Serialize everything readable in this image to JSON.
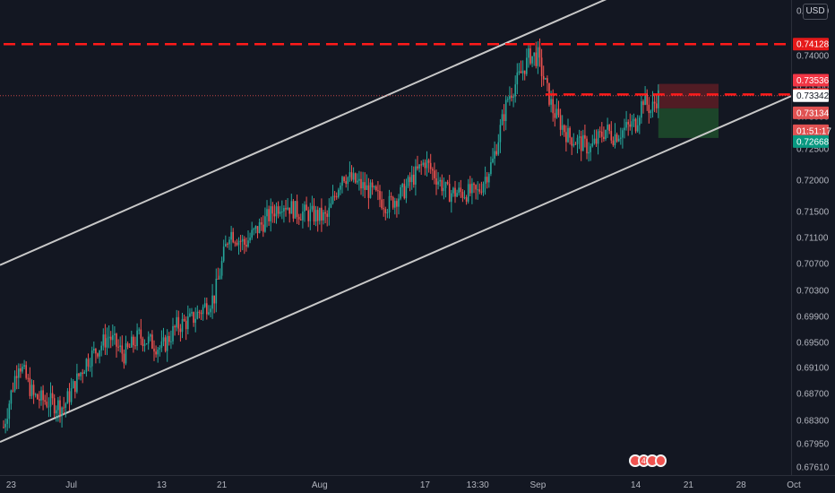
{
  "currency_label": "USD",
  "event_count": "4",
  "colors": {
    "background": "#131722",
    "up": "#26a69a",
    "down": "#ef5350",
    "channel": "#c8c8c8",
    "level": "#ff1a1a",
    "stop_zone": "#5d1d24",
    "profit_zone": "#1e4d2b",
    "last_price": "#ffffff"
  },
  "chart_data": {
    "type": "candlestick",
    "y_scale": "linear",
    "ylim": [
      0.675,
      0.747
    ],
    "y_ticks": [
      "0.74500",
      "0.74000",
      "0.73500",
      "0.73000",
      "0.72500",
      "0.72000",
      "0.71500",
      "0.71100",
      "0.70700",
      "0.70300",
      "0.69900",
      "0.69500",
      "0.69100",
      "0.68700",
      "0.68300",
      "0.67950",
      "0.67610"
    ],
    "x_ticks": [
      {
        "label": "23",
        "date": "2020-06-23"
      },
      {
        "label": "Jul",
        "date": "2020-07-01"
      },
      {
        "label": "13",
        "date": "2020-07-13"
      },
      {
        "label": "21",
        "date": "2020-07-21"
      },
      {
        "label": "Aug",
        "date": "2020-08-03"
      },
      {
        "label": "17",
        "date": "2020-08-17"
      },
      {
        "label": "13:30",
        "date": "2020-08-24"
      },
      {
        "label": "Sep",
        "date": "2020-09-01"
      },
      {
        "label": "14",
        "date": "2020-09-14"
      },
      {
        "label": "21",
        "date": "2020-09-21"
      },
      {
        "label": "28",
        "date": "2020-09-28"
      },
      {
        "label": "Oct",
        "date": "2020-10-05"
      }
    ],
    "price_path": [
      [
        "2020-06-22",
        0.682
      ],
      [
        "2020-06-24",
        0.692
      ],
      [
        "2020-06-26",
        0.6865
      ],
      [
        "2020-06-30",
        0.685
      ],
      [
        "2020-07-03",
        0.692
      ],
      [
        "2020-07-06",
        0.696
      ],
      [
        "2020-07-08",
        0.693
      ],
      [
        "2020-07-10",
        0.696
      ],
      [
        "2020-07-13",
        0.694
      ],
      [
        "2020-07-15",
        0.6975
      ],
      [
        "2020-07-17",
        0.6985
      ],
      [
        "2020-07-20",
        0.702
      ],
      [
        "2020-07-22",
        0.712
      ],
      [
        "2020-07-24",
        0.71
      ],
      [
        "2020-07-27",
        0.714
      ],
      [
        "2020-07-29",
        0.7165
      ],
      [
        "2020-07-31",
        0.715
      ],
      [
        "2020-08-04",
        0.714
      ],
      [
        "2020-08-06",
        0.721
      ],
      [
        "2020-08-10",
        0.718
      ],
      [
        "2020-08-12",
        0.716
      ],
      [
        "2020-08-14",
        0.718
      ],
      [
        "2020-08-17",
        0.723
      ],
      [
        "2020-08-20",
        0.718
      ],
      [
        "2020-08-24",
        0.718
      ],
      [
        "2020-08-26",
        0.723
      ],
      [
        "2020-08-28",
        0.733
      ],
      [
        "2020-08-31",
        0.74
      ],
      [
        "2020-09-01",
        0.7395
      ],
      [
        "2020-09-03",
        0.731
      ],
      [
        "2020-09-05",
        0.727
      ],
      [
        "2020-09-08",
        0.725
      ],
      [
        "2020-09-10",
        0.728
      ],
      [
        "2020-09-11",
        0.727
      ],
      [
        "2020-09-14",
        0.729
      ],
      [
        "2020-09-15",
        0.733
      ],
      [
        "2020-09-16",
        0.731
      ],
      [
        "2020-09-17",
        0.7334
      ]
    ],
    "horizontal_levels": [
      {
        "price": 0.74128,
        "label": "0.74128",
        "style": "dashed",
        "color": "#ff1a1a",
        "from": "2020-06-22"
      },
      {
        "price": 0.73363,
        "label": "0.73363",
        "style": "dashed",
        "color": "#ff1a1a",
        "from": "2020-09-02"
      }
    ],
    "last_price": {
      "price": 0.73342,
      "label": "0.73342",
      "countdown": "01:51:17"
    },
    "position": {
      "from": "2020-09-17",
      "to": "2020-09-25",
      "stop": 0.73536,
      "stop_label": "0.73536",
      "entry": 0.73134,
      "entry_label": "0.73134",
      "target": 0.72668,
      "target_label": "0.72668"
    },
    "channel_lines": [
      {
        "points": [
          [
            "2020-06-22",
            0.707
          ],
          [
            "2020-09-12",
            0.747
          ]
        ]
      },
      {
        "points": [
          [
            "2020-06-22",
            0.68
          ],
          [
            "2020-10-04",
            0.733
          ]
        ]
      }
    ]
  }
}
